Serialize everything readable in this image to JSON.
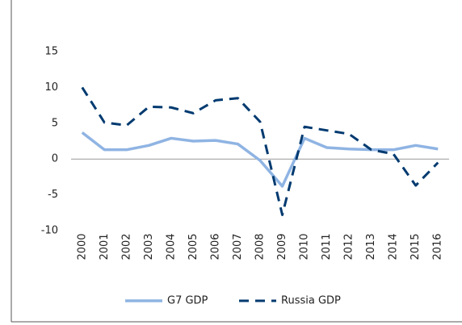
{
  "chart_data": {
    "type": "line",
    "categories": [
      "2000",
      "2001",
      "2002",
      "2003",
      "2004",
      "2005",
      "2006",
      "2007",
      "2008",
      "2009",
      "2010",
      "2011",
      "2012",
      "2013",
      "2014",
      "2015",
      "2016"
    ],
    "series": [
      {
        "name": "G7 GDP",
        "color": "#8fb4e3",
        "dash": false,
        "values": [
          3.7,
          1.3,
          1.3,
          1.9,
          2.9,
          2.5,
          2.6,
          2.1,
          -0.2,
          -3.8,
          2.9,
          1.6,
          1.4,
          1.3,
          1.3,
          1.9,
          1.4
        ]
      },
      {
        "name": "Russia GDP",
        "color": "#003a70",
        "dash": true,
        "values": [
          10.0,
          5.1,
          4.7,
          7.3,
          7.2,
          6.4,
          8.2,
          8.5,
          5.2,
          -7.8,
          4.5,
          4.0,
          3.5,
          1.3,
          0.7,
          -3.7,
          -0.5
        ]
      }
    ],
    "ylim": [
      -10,
      15
    ],
    "yticks": [
      -10,
      -5,
      0,
      5,
      10,
      15
    ],
    "grid": false,
    "legend": "bottom"
  }
}
